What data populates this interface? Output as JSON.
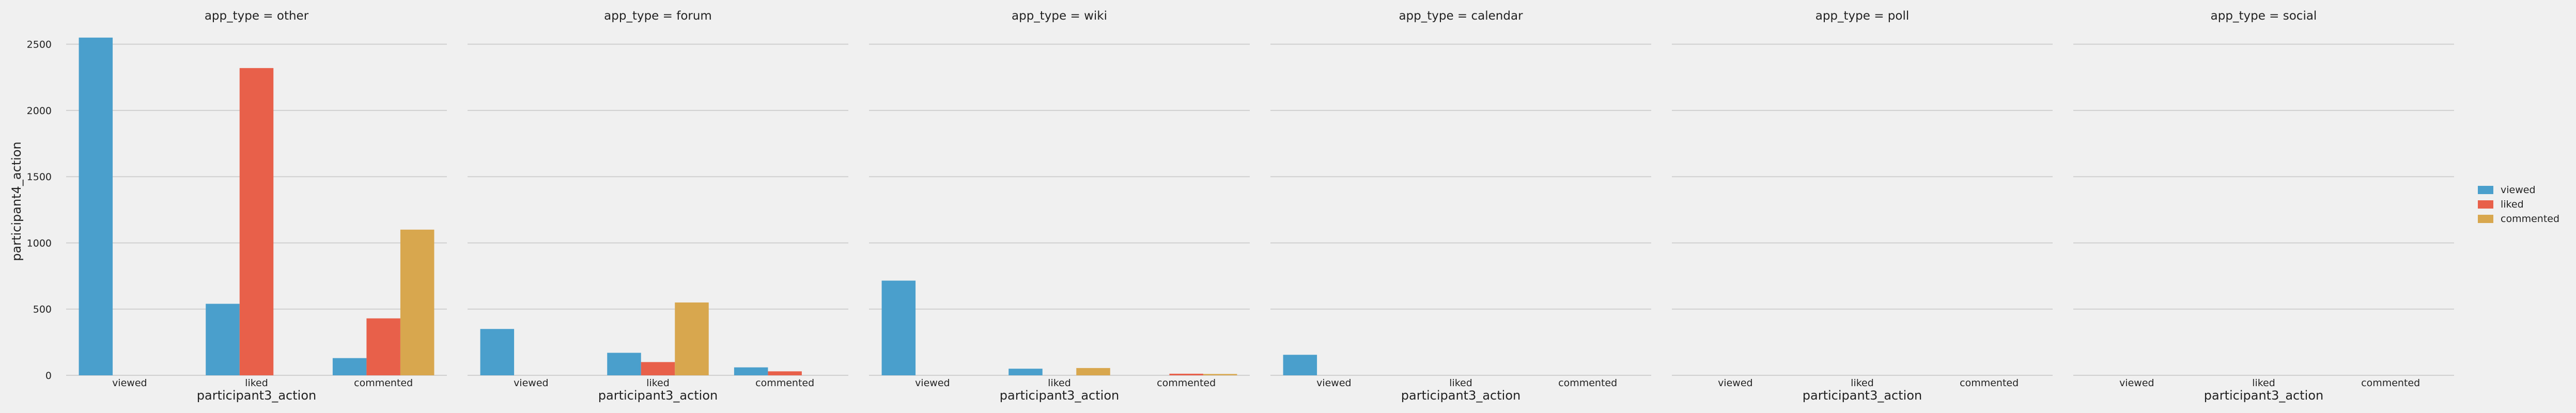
{
  "chart_data": {
    "type": "bar",
    "facet_variable": "app_type",
    "panel_titles": [
      "app_type = other",
      "app_type = forum",
      "app_type = wiki",
      "app_type = calendar",
      "app_type = poll",
      "app_type = social"
    ],
    "categories": [
      "viewed",
      "liked",
      "commented"
    ],
    "xlabel": "participant3_action",
    "ylabel": "participant4_action",
    "ylim": [
      0,
      2600
    ],
    "yticks": [
      0,
      500,
      1000,
      1500,
      2000,
      2500
    ],
    "grid": true,
    "legend_placement": "right",
    "legend": [
      "viewed",
      "liked",
      "commented"
    ],
    "colors": {
      "viewed": "#4a9fcc",
      "liked": "#e8604a",
      "commented": "#d8a74e",
      "background": "#f0f0f0",
      "grid": "#d0d0d0"
    },
    "panels": [
      {
        "app_type": "other",
        "series": [
          {
            "name": "viewed",
            "values": [
              2550,
              540,
              130
            ]
          },
          {
            "name": "liked",
            "values": [
              0,
              2320,
              430
            ]
          },
          {
            "name": "commented",
            "values": [
              0,
              0,
              1100
            ]
          }
        ]
      },
      {
        "app_type": "forum",
        "series": [
          {
            "name": "viewed",
            "values": [
              350,
              170,
              60
            ]
          },
          {
            "name": "liked",
            "values": [
              0,
              100,
              30
            ]
          },
          {
            "name": "commented",
            "values": [
              0,
              550,
              0
            ]
          }
        ]
      },
      {
        "app_type": "wiki",
        "series": [
          {
            "name": "viewed",
            "values": [
              715,
              50,
              0
            ]
          },
          {
            "name": "liked",
            "values": [
              0,
              0,
              12
            ]
          },
          {
            "name": "commented",
            "values": [
              0,
              55,
              10
            ]
          }
        ]
      },
      {
        "app_type": "calendar",
        "series": [
          {
            "name": "viewed",
            "values": [
              155,
              0,
              0
            ]
          },
          {
            "name": "liked",
            "values": [
              0,
              0,
              0
            ]
          },
          {
            "name": "commented",
            "values": [
              0,
              0,
              0
            ]
          }
        ]
      },
      {
        "app_type": "poll",
        "series": [
          {
            "name": "viewed",
            "values": [
              0,
              0,
              0
            ]
          },
          {
            "name": "liked",
            "values": [
              0,
              0,
              0
            ]
          },
          {
            "name": "commented",
            "values": [
              0,
              0,
              0
            ]
          }
        ]
      },
      {
        "app_type": "social",
        "series": [
          {
            "name": "viewed",
            "values": [
              0,
              0,
              0
            ]
          },
          {
            "name": "liked",
            "values": [
              0,
              0,
              0
            ]
          },
          {
            "name": "commented",
            "values": [
              0,
              0,
              0
            ]
          }
        ]
      }
    ]
  }
}
